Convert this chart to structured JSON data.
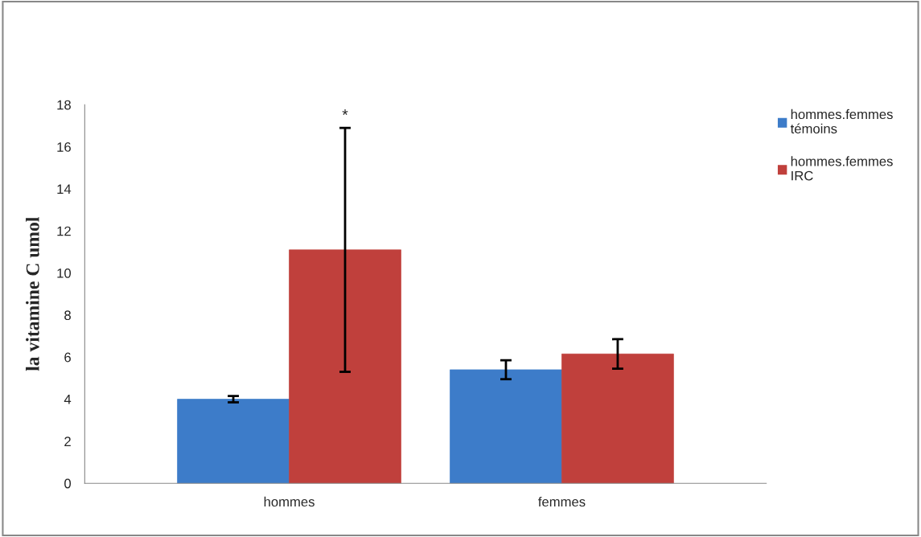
{
  "chart_data": {
    "type": "bar",
    "ylabel": "la vitamine C umol",
    "categories": [
      "hommes",
      "femmes"
    ],
    "series": [
      {
        "name": "hommes.femmes\ntémoins",
        "color": "#3d7cc9",
        "values": [
          4.0,
          5.4
        ],
        "errors": [
          0.15,
          0.45
        ]
      },
      {
        "name": "hommes.femmes\nIRC",
        "color": "#c0403c",
        "values": [
          11.1,
          6.15
        ],
        "errors": [
          5.8,
          0.7
        ]
      }
    ],
    "ylim": [
      0,
      18
    ],
    "yticks": [
      0,
      2,
      4,
      6,
      8,
      10,
      12,
      14,
      16,
      18
    ],
    "annotations": [
      "*"
    ],
    "grid": false,
    "legend": "top right"
  }
}
